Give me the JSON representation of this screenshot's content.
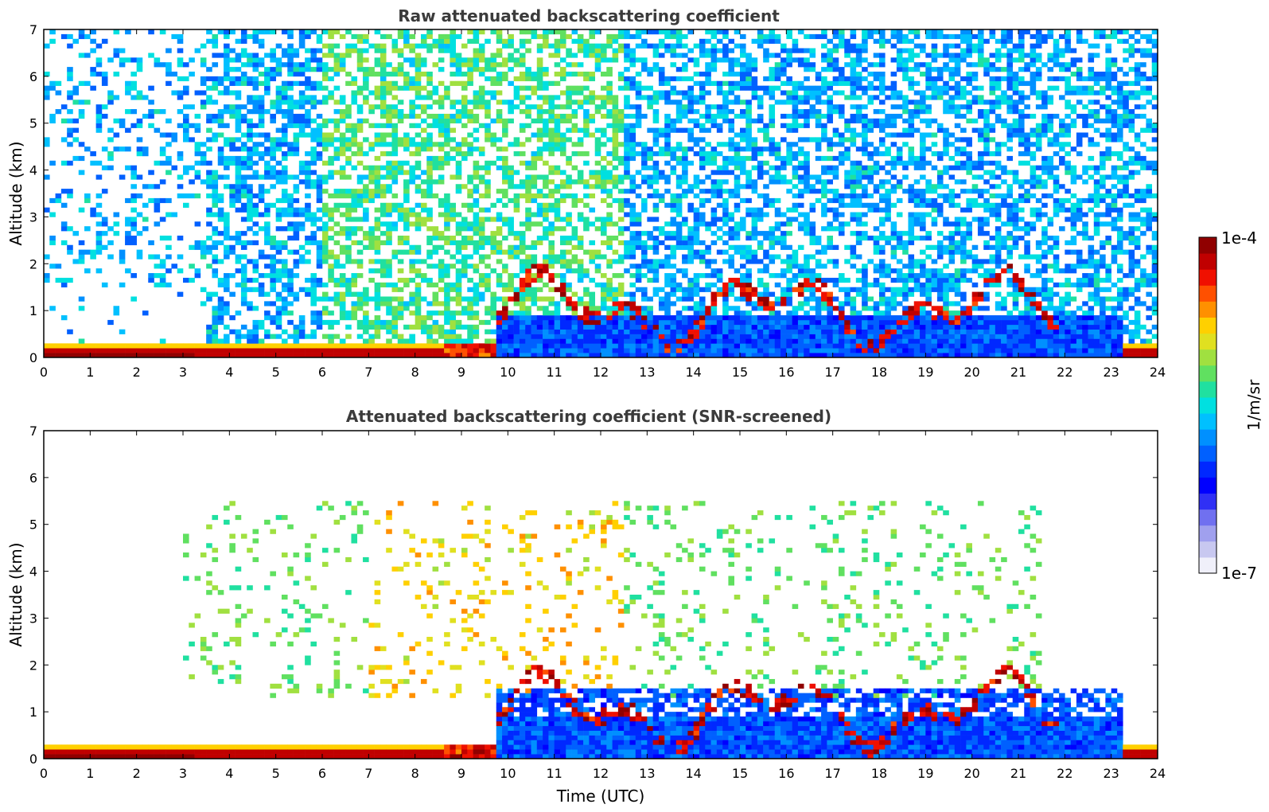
{
  "chart_data": [
    {
      "type": "heatmap",
      "title": "Raw attenuated backscattering coefficient",
      "xlabel": "",
      "ylabel": "Altitude (km)",
      "xlim": [
        0,
        24
      ],
      "ylim": [
        0,
        7
      ],
      "x_ticks": [
        0,
        1,
        2,
        3,
        4,
        5,
        6,
        7,
        8,
        9,
        10,
        11,
        12,
        13,
        14,
        15,
        16,
        17,
        18,
        19,
        20,
        21,
        22,
        23,
        24
      ],
      "y_ticks": [
        0,
        1,
        2,
        3,
        4,
        5,
        6,
        7
      ],
      "color_scale": "log",
      "features": [
        {
          "label": "boundary layer aerosol (strong)",
          "x": [
            0,
            9.7
          ],
          "top_km": 0.35,
          "log10_beta": -4.0
        },
        {
          "label": "boundary layer (daytime)",
          "x": [
            9.7,
            23.3
          ],
          "top_km": 0.9,
          "log10_beta": -5.9
        },
        {
          "label": "low clouds",
          "x": [
            9.7,
            21.8
          ],
          "altitude_km": [
            0.7,
            2.0
          ],
          "log10_beta": -4.0
        },
        {
          "label": "boundary layer aerosol (late)",
          "x": [
            23.3,
            24
          ],
          "top_km": 0.3,
          "log10_beta": -4.0
        }
      ]
    },
    {
      "type": "heatmap",
      "title": "Attenuated backscattering coefficient (SNR-screened)",
      "xlabel": "Time (UTC)",
      "ylabel": "Altitude (km)",
      "xlim": [
        0,
        24
      ],
      "ylim": [
        0,
        7
      ],
      "x_ticks": [
        0,
        1,
        2,
        3,
        4,
        5,
        6,
        7,
        8,
        9,
        10,
        11,
        12,
        13,
        14,
        15,
        16,
        17,
        18,
        19,
        20,
        21,
        22,
        23,
        24
      ],
      "y_ticks": [
        0,
        1,
        2,
        3,
        4,
        5,
        6,
        7
      ],
      "color_scale": "log",
      "features": [
        {
          "label": "boundary layer aerosol (strong)",
          "x": [
            0,
            9.7
          ],
          "top_km": 0.35,
          "log10_beta": -4.0
        },
        {
          "label": "boundary layer (daytime)",
          "x": [
            9.7,
            23.3
          ],
          "top_km": 1.5,
          "log10_beta": -5.9
        },
        {
          "label": "low clouds",
          "x": [
            9.7,
            21.8
          ],
          "altitude_km": [
            0.7,
            2.0
          ],
          "log10_beta": -4.0
        },
        {
          "label": "sparse aerosol",
          "x": [
            3,
            21
          ],
          "altitude_km": [
            1.5,
            5.5
          ],
          "log10_beta": -5.0
        }
      ]
    }
  ],
  "colorbar": {
    "min_label": "1e-7",
    "max_label": "1e-4",
    "label": "1/m/sr",
    "colors": [
      "#f0f0fa",
      "#c8c8f0",
      "#a0a0ee",
      "#7070f0",
      "#3030f5",
      "#0000ff",
      "#0028ff",
      "#0060ff",
      "#0090ff",
      "#00c0ff",
      "#00e0e0",
      "#20e0a0",
      "#60e060",
      "#a0e040",
      "#e0e020",
      "#ffd000",
      "#ff9000",
      "#ff5000",
      "#f01000",
      "#c00000",
      "#900000"
    ]
  }
}
